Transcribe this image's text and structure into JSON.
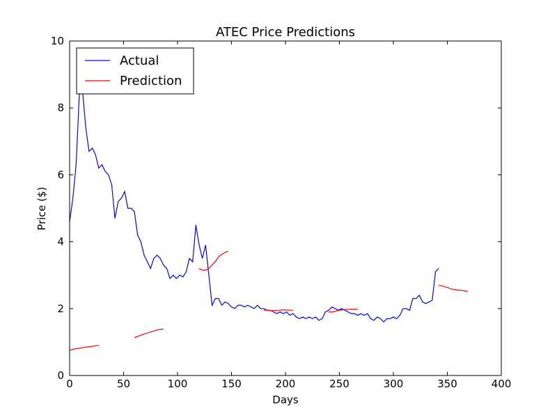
{
  "chart_data": {
    "type": "line",
    "title": "ATEC Price Predictions",
    "x_label": "Days",
    "y_label": "Price ($)",
    "x": [
      0,
      3,
      6,
      9,
      12,
      15,
      18,
      21,
      24,
      27,
      30,
      33,
      36,
      39,
      42,
      45,
      48,
      51,
      54,
      57,
      60,
      63,
      66,
      69,
      72,
      75,
      78,
      81,
      84,
      87,
      90,
      93,
      96,
      99,
      102,
      105,
      108,
      111,
      114,
      117,
      120,
      123,
      126,
      129,
      132,
      135,
      138,
      141,
      144,
      147,
      150,
      153,
      156,
      159,
      162,
      165,
      168,
      171,
      174,
      177,
      180,
      183,
      186,
      189,
      192,
      195,
      198,
      201,
      204,
      207,
      210,
      213,
      216,
      219,
      222,
      225,
      228,
      231,
      234,
      237,
      240,
      243,
      246,
      249,
      252,
      255,
      258,
      261,
      264,
      267,
      270,
      273,
      276,
      279,
      282,
      285,
      288,
      291,
      294,
      297,
      300,
      303,
      306,
      309,
      312,
      315,
      318,
      321,
      324,
      327,
      330,
      333,
      336,
      339,
      342,
      345,
      348,
      351,
      354,
      357,
      360,
      363,
      366,
      369
    ],
    "series": [
      {
        "name": "Actual",
        "color": "#0000ff",
        "values": [
          4.6,
          5.3,
          6.3,
          8.4,
          8.5,
          7.4,
          6.7,
          6.8,
          6.6,
          6.2,
          6.3,
          6.1,
          6.0,
          5.7,
          4.7,
          5.2,
          5.3,
          5.5,
          5.0,
          5.0,
          4.9,
          4.2,
          4.0,
          3.6,
          3.4,
          3.2,
          3.5,
          3.6,
          3.5,
          3.3,
          3.2,
          2.9,
          3.0,
          2.9,
          3.0,
          2.95,
          3.1,
          3.5,
          3.4,
          4.5,
          3.9,
          3.5,
          3.9,
          3.0,
          2.1,
          2.3,
          2.3,
          2.1,
          2.2,
          2.15,
          2.05,
          2.0,
          2.1,
          2.1,
          2.05,
          2.1,
          2.05,
          2.0,
          2.1,
          2.0,
          2.0,
          1.95,
          1.95,
          1.9,
          1.85,
          1.9,
          1.85,
          1.9,
          1.8,
          1.85,
          1.75,
          1.7,
          1.75,
          1.7,
          1.75,
          1.7,
          1.75,
          1.65,
          1.7,
          1.9,
          1.95,
          2.05,
          2.0,
          1.95,
          2.0,
          1.95,
          1.9,
          1.85,
          1.85,
          1.8,
          1.85,
          1.8,
          1.85,
          1.7,
          1.65,
          1.75,
          1.7,
          1.6,
          1.7,
          1.7,
          1.75,
          1.7,
          1.8,
          2.0,
          2.0,
          1.95,
          2.3,
          2.3,
          2.4,
          2.2,
          2.15,
          2.2,
          2.25,
          3.1,
          3.2,
          null,
          null,
          null,
          null,
          null,
          null,
          null,
          null,
          null
        ]
      },
      {
        "name": "Prediction",
        "color": "#ff0000",
        "values": [
          0.75,
          0.78,
          0.8,
          0.82,
          0.83,
          0.85,
          0.86,
          0.87,
          0.89,
          0.9,
          null,
          null,
          null,
          null,
          null,
          null,
          null,
          null,
          null,
          null,
          1.13,
          1.17,
          1.2,
          1.24,
          1.27,
          1.3,
          1.33,
          1.36,
          1.38,
          1.39,
          null,
          null,
          null,
          null,
          null,
          null,
          null,
          null,
          null,
          null,
          3.2,
          3.15,
          3.15,
          3.2,
          3.3,
          3.4,
          3.55,
          3.62,
          3.68,
          3.72,
          null,
          null,
          null,
          null,
          null,
          null,
          null,
          null,
          null,
          null,
          1.95,
          1.95,
          1.94,
          1.94,
          1.95,
          1.95,
          1.96,
          1.96,
          1.95,
          1.95,
          null,
          null,
          null,
          null,
          null,
          null,
          null,
          null,
          null,
          null,
          1.9,
          1.9,
          1.92,
          1.94,
          1.96,
          1.97,
          1.98,
          1.98,
          1.98,
          1.98,
          null,
          null,
          null,
          null,
          null,
          null,
          null,
          null,
          null,
          null,
          null,
          null,
          null,
          null,
          null,
          null,
          null,
          null,
          null,
          null,
          null,
          null,
          null,
          null,
          2.7,
          2.68,
          2.65,
          2.62,
          2.58,
          2.57,
          2.55,
          2.55,
          2.53,
          2.52
        ]
      }
    ],
    "xlim": [
      0,
      400
    ],
    "ylim": [
      0,
      10
    ],
    "xticks": [
      0,
      50,
      100,
      150,
      200,
      250,
      300,
      350,
      400
    ],
    "yticks": [
      0,
      2,
      4,
      6,
      8,
      10
    ],
    "legend": "upper left"
  }
}
